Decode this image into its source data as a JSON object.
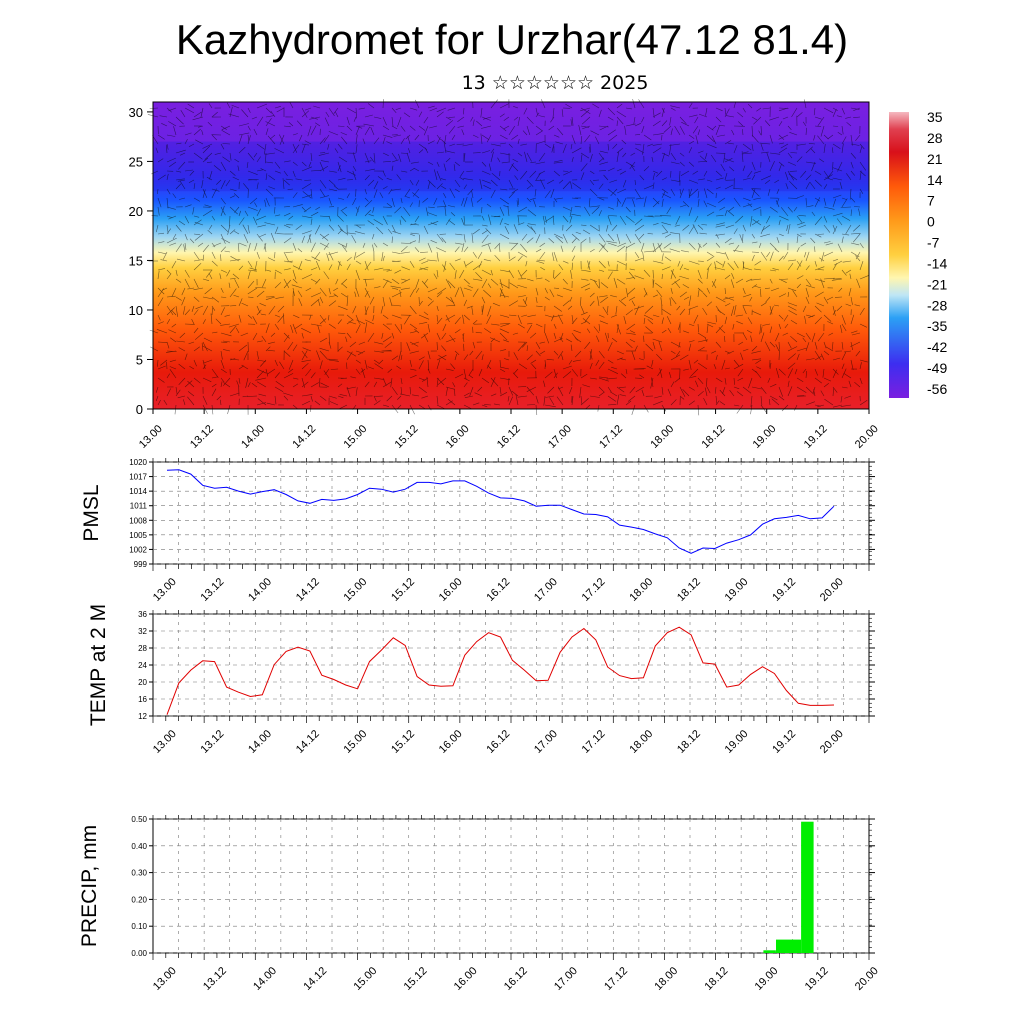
{
  "header": {
    "title": "Kazhydromet for Urzhar(47.12 81.4)",
    "subtitle": "13 ☆☆☆☆☆☆ 2025"
  },
  "chart_data": [
    {
      "type": "heatmap",
      "name_key": "temperature_section",
      "x_ticks": [
        "13.00",
        "13.12",
        "14.00",
        "14.12",
        "15.00",
        "15.12",
        "16.00",
        "16.12",
        "17.00",
        "17.12",
        "18.00",
        "18.12",
        "19.00",
        "19.12",
        "20.00"
      ],
      "y_ticks": [
        0,
        5,
        10,
        15,
        20,
        25,
        30
      ],
      "ylim": [
        0,
        31
      ],
      "colorbar_labels": [
        "35",
        "28",
        "21",
        "14",
        "7",
        "0",
        "-7",
        "-14",
        "-21",
        "-28",
        "-35",
        "-42",
        "-49",
        "-56"
      ],
      "colorbar_range": [
        -60,
        38
      ],
      "colors": [
        "#7a1fe0",
        "#3d2ef0",
        "#1a55ff",
        "#2ba0f5",
        "#9fd6f2",
        "#fff6b0",
        "#ffd040",
        "#ff9a1a",
        "#ff5a0a",
        "#e81a0a",
        "#c8101a",
        "#f2a0a8"
      ],
      "overlay": "wind vectors (black arrows)"
    },
    {
      "type": "line",
      "name_key": "pmsl",
      "ylabel": "PMSL",
      "ylim": [
        999,
        1020
      ],
      "y_ticks": [
        999,
        1002,
        1005,
        1008,
        1011,
        1014,
        1017,
        1020
      ],
      "x_ticks": [
        "13.00",
        "13.12",
        "14.00",
        "14.12",
        "15.00",
        "15.12",
        "16.00",
        "16.12",
        "17.00",
        "17.12",
        "18.00",
        "18.12",
        "19.00",
        "19.12",
        "20.00"
      ],
      "color": "#0000ff",
      "series": [
        {
          "values": [
            1018.3,
            1018.4,
            1017.5,
            1015.2,
            1014.6,
            1014.8,
            1014.0,
            1013.4,
            1013.9,
            1014.3,
            1013.3,
            1012.0,
            1011.5,
            1012.3,
            1012.1,
            1012.4,
            1013.3,
            1014.6,
            1014.4,
            1013.8,
            1014.4,
            1015.8,
            1015.8,
            1015.5,
            1016.1,
            1016.1,
            1015.0,
            1013.6,
            1012.6,
            1012.5,
            1012.0,
            1010.9,
            1011.1,
            1011.1,
            1010.2,
            1009.3,
            1009.2,
            1008.7,
            1007.0,
            1006.6,
            1006.1,
            1005.2,
            1004.4,
            1002.3,
            1001.2,
            1002.3,
            1002.2,
            1003.3,
            1004.0,
            1005.0,
            1007.2,
            1008.3,
            1008.6,
            1009.0,
            1008.3,
            1008.5,
            1010.9
          ]
        }
      ]
    },
    {
      "type": "line",
      "name_key": "temp",
      "ylabel": "TEMP at 2 M",
      "ylim": [
        12,
        36
      ],
      "y_ticks": [
        12,
        16,
        20,
        24,
        28,
        32,
        36
      ],
      "x_ticks": [
        "13.00",
        "13.12",
        "14.00",
        "14.12",
        "15.00",
        "15.12",
        "16.00",
        "16.12",
        "17.00",
        "17.12",
        "18.00",
        "18.12",
        "19.00",
        "19.12",
        "20.00"
      ],
      "color": "#e00000",
      "series": [
        {
          "values": [
            12.3,
            19.8,
            22.8,
            25.0,
            24.8,
            18.8,
            17.6,
            16.6,
            17.0,
            24.1,
            27.2,
            28.2,
            27.3,
            21.6,
            20.6,
            19.3,
            18.4,
            24.8,
            27.5,
            30.4,
            28.6,
            21.3,
            19.3,
            19.0,
            19.1,
            26.3,
            29.5,
            31.6,
            30.6,
            25.1,
            22.8,
            20.3,
            20.4,
            27.0,
            30.6,
            32.6,
            29.9,
            23.5,
            21.5,
            20.8,
            21.0,
            28.5,
            31.6,
            32.9,
            31.1,
            24.5,
            24.2,
            18.8,
            19.3,
            21.8,
            23.6,
            22.0,
            18.0,
            15.0,
            14.5,
            14.5,
            14.6
          ]
        }
      ]
    },
    {
      "type": "bar",
      "name_key": "precip",
      "ylabel": "PRECIP, mm",
      "ylim": [
        0,
        0.5
      ],
      "y_ticks": [
        "0.00",
        "0.10",
        "0.20",
        "0.30",
        "0.40",
        "0.50"
      ],
      "x_ticks": [
        "13.00",
        "13.12",
        "14.00",
        "14.12",
        "15.00",
        "15.12",
        "16.00",
        "16.12",
        "17.00",
        "17.12",
        "18.00",
        "18.12",
        "19.00",
        "19.12",
        "20.00"
      ],
      "color": "#00ee00",
      "bars": [
        {
          "x": "19.00 (step 48)",
          "step": 48,
          "value": 0.01
        },
        {
          "x": "19.03",
          "step": 49,
          "value": 0.05
        },
        {
          "x": "19.06",
          "step": 50,
          "value": 0.05
        },
        {
          "x": "19.09",
          "step": 51,
          "value": 0.49
        }
      ]
    }
  ]
}
